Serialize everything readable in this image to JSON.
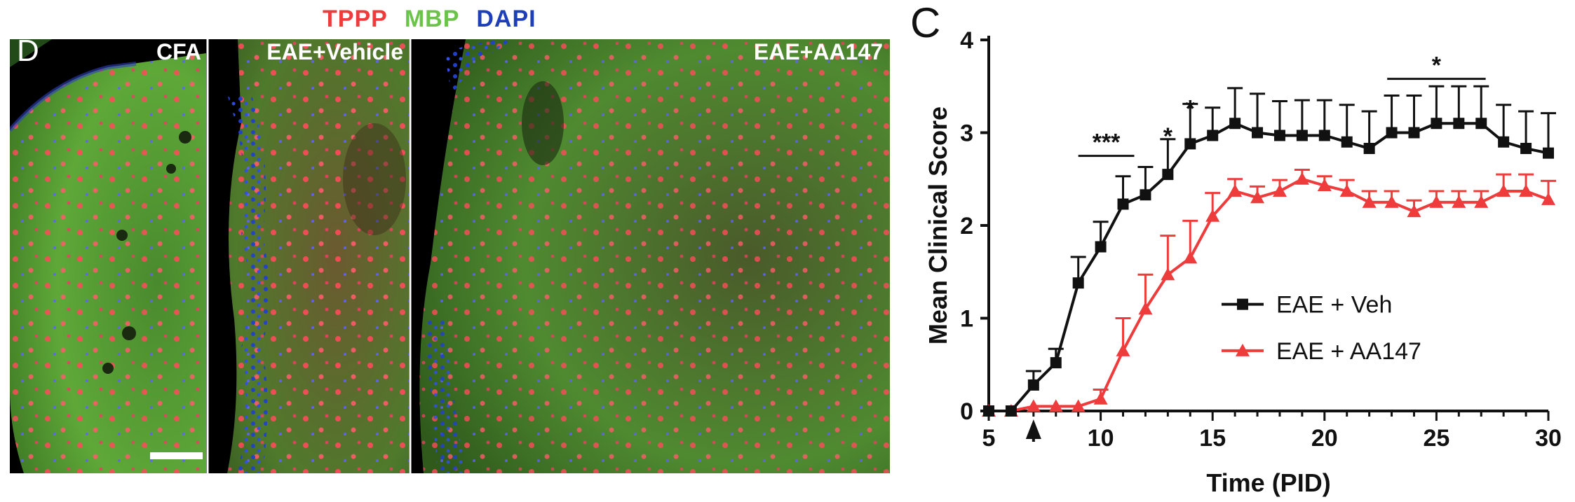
{
  "stain_legend": {
    "items": [
      {
        "label": "TPPP",
        "color": "#ee3b3b"
      },
      {
        "label": "MBP",
        "color": "#6cc24a"
      },
      {
        "label": "DAPI",
        "color": "#1f3fb8"
      }
    ]
  },
  "micrograph": {
    "panel_letter": "D",
    "panels": [
      {
        "title": "CFA"
      },
      {
        "title": "EAE+Vehicle"
      },
      {
        "title": "EAE+AA147"
      }
    ]
  },
  "chart_panel_letter": "C",
  "chart_data": {
    "type": "line",
    "title": "",
    "xlabel": "Time (PID)",
    "ylabel": "Mean Clinical Score",
    "xlim": [
      5,
      30
    ],
    "ylim": [
      0,
      4
    ],
    "xticks": [
      5,
      10,
      15,
      20,
      25,
      30
    ],
    "yticks": [
      0,
      1,
      2,
      3,
      4
    ],
    "legend_position": "center-right",
    "series": [
      {
        "name": "EAE + Veh",
        "color": "#111111",
        "marker": "square",
        "x": [
          5,
          6,
          7,
          8,
          9,
          10,
          11,
          12,
          13,
          14,
          15,
          16,
          17,
          18,
          19,
          20,
          21,
          22,
          23,
          24,
          25,
          26,
          27,
          28,
          29,
          30
        ],
        "y": [
          0,
          0,
          0.28,
          0.52,
          1.38,
          1.77,
          2.23,
          2.33,
          2.55,
          2.88,
          2.97,
          3.1,
          3.0,
          2.97,
          2.97,
          2.97,
          2.9,
          2.83,
          3.0,
          3.0,
          3.1,
          3.1,
          3.1,
          2.9,
          2.83,
          2.78
        ],
        "error": [
          0,
          0,
          0.15,
          0.15,
          0.28,
          0.27,
          0.3,
          0.3,
          0.38,
          0.43,
          0.3,
          0.38,
          0.42,
          0.37,
          0.38,
          0.38,
          0.4,
          0.4,
          0.4,
          0.4,
          0.4,
          0.4,
          0.4,
          0.4,
          0.4,
          0.43
        ]
      },
      {
        "name": "EAE + AA147",
        "color": "#ee3b3b",
        "marker": "triangle",
        "x": [
          5,
          6,
          7,
          8,
          9,
          10,
          11,
          12,
          13,
          14,
          15,
          16,
          17,
          18,
          19,
          20,
          21,
          22,
          23,
          24,
          25,
          26,
          27,
          28,
          29,
          30
        ],
        "y": [
          0,
          0,
          0.05,
          0.05,
          0.05,
          0.13,
          0.65,
          1.1,
          1.47,
          1.65,
          2.1,
          2.37,
          2.3,
          2.37,
          2.5,
          2.43,
          2.37,
          2.25,
          2.25,
          2.15,
          2.25,
          2.25,
          2.25,
          2.37,
          2.37,
          2.28
        ],
        "error": [
          0,
          0,
          0,
          0,
          0,
          0.1,
          0.35,
          0.37,
          0.42,
          0.4,
          0.25,
          0.13,
          0.12,
          0.12,
          0.1,
          0.1,
          0.12,
          0.12,
          0.12,
          0.12,
          0.12,
          0.12,
          0.12,
          0.18,
          0.18,
          0.2
        ]
      }
    ],
    "annotations": [
      {
        "text": "***",
        "bar_from": 9,
        "bar_to": 11.5,
        "y": 2.75
      },
      {
        "text": "*",
        "x": 13,
        "y": 2.95
      },
      {
        "text": "*",
        "x": 14,
        "y": 3.25
      },
      {
        "text": "*",
        "bar_from": 22.8,
        "bar_to": 27.2,
        "y": 3.58
      }
    ],
    "arrow_at_x": 7
  }
}
